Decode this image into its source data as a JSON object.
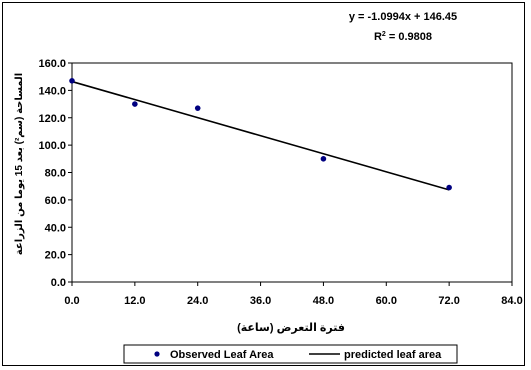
{
  "chart_data": {
    "type": "scatter",
    "xlabel": "فترة التعرض (ساعة)",
    "ylabel": "المساحة (سم²) بعد 15 يوما من الزراعة",
    "xlim": [
      0,
      84
    ],
    "ylim": [
      0,
      160
    ],
    "x_ticks": [
      "0.0",
      "12.0",
      "24.0",
      "36.0",
      "48.0",
      "60.0",
      "72.0",
      "84.0"
    ],
    "y_ticks": [
      "0.0",
      "20.0",
      "40.0",
      "60.0",
      "80.0",
      "100.0",
      "120.0",
      "140.0",
      "160.0"
    ],
    "grid": false,
    "legend_position": "bottom",
    "series": [
      {
        "name": "Observed Leaf Area",
        "kind": "scatter",
        "color": "#000080",
        "points": [
          {
            "x": 0,
            "y": 147
          },
          {
            "x": 12,
            "y": 130
          },
          {
            "x": 24,
            "y": 127
          },
          {
            "x": 48,
            "y": 90
          },
          {
            "x": 72,
            "y": 69
          }
        ]
      },
      {
        "name": "predicted leaf area",
        "kind": "line",
        "color": "#000000",
        "slope": -1.0994,
        "intercept": 146.45
      }
    ],
    "annotations": {
      "equation": "y = -1.0994x + 146.45",
      "r2_prefix": "R",
      "r2_sup": "2",
      "r2_suffix": " = 0.9808"
    }
  }
}
